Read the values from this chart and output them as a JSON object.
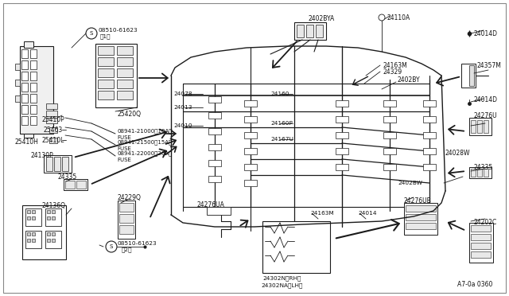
{
  "bg_color": "#f8f5ee",
  "line_color": "#1a1a1a",
  "text_color": "#111111",
  "labels": {
    "s1_text": "08510-61623",
    "s1_sub": "（1）",
    "s2_text": "08510-61623",
    "s2_sub": "（2）",
    "p25420Q": "25420Q",
    "p25410H": "25410H",
    "p25410P": "25410P",
    "p25463": "25463",
    "p25410L": "25410L",
    "f1": "08941-21000＜10A＞",
    "f1b": "FUSE",
    "f2": "08941-21500＜15A＞",
    "f2b": "FUSE",
    "f3": "08941-22000＜20A＞",
    "f3b": "FUSE",
    "p2402BYA": "2402BYA",
    "p24110A": "24110A",
    "p24163M_top": "24163M",
    "p24329": "24329",
    "p2402BY": "2402BY",
    "p24078": "24078",
    "p24013": "24013",
    "p24160": "24160",
    "p24010": "24010",
    "p24160P": "24160P",
    "p24167U": "24167U",
    "p2402BW": "2402BW",
    "p24163M_bot": "24163M",
    "p24014": "24014",
    "p24130P": "24130P",
    "p24335_left": "24335",
    "p24136Q": "24136Q",
    "p24229Q": "24229Q",
    "p24276UA": "24276UA",
    "p24302N": "24302N（RH）",
    "p24302NA": "24302NA（LH）",
    "p24276UB": "24276UB",
    "p24202C": "24202C",
    "p24335_right": "24335",
    "p24276U": "24276U",
    "p24014D_mid": "24014D",
    "p24014D_top": "24014D",
    "p24357M": "24357M",
    "p24028W": "24028W",
    "ref": "A7-0a 0360"
  }
}
